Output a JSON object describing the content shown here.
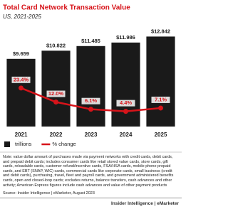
{
  "chart_data": {
    "type": "bar",
    "title": "Total Card Network Transaction Value",
    "subtitle": "US, 2021-2025",
    "categories": [
      "2021",
      "2022",
      "2023",
      "2024",
      "2025"
    ],
    "series": [
      {
        "name": "trillions",
        "color": "#1a1a1a",
        "values": [
          9.659,
          10.822,
          11.485,
          11.986,
          12.842
        ],
        "value_labels": [
          "$9.659",
          "$10.822",
          "$11.485",
          "$11.986",
          "$12.842"
        ]
      },
      {
        "name": "% change",
        "type": "line",
        "axis": "y2",
        "color": "#d7141a",
        "values": [
          23.4,
          12.0,
          6.1,
          4.4,
          7.1
        ],
        "value_labels": [
          "23.4%",
          "12.0%",
          "6.1%",
          "4.4%",
          "7.1%"
        ]
      }
    ],
    "ylim": [
      0,
      14
    ],
    "y2lim": [
      -8,
      72
    ],
    "note": "Note: value dollar amount of purchases made via payment networks with credit cards, debit cards, and prepaid debit cards; includes consumer cards like retail stored value cards, store cards, gift cards, reloadable cards, customer refund/incentive cards, FSA/HSA cards, mobile phone prepaid cards, and EBT (SNAP, WIC) cards, commercial cards like corporate cards, small business (credit and debit cards), purchasing, travel, fleet and payroll cards, and government administered benefits cards, open and closed-loop cards; excludes returns, balance transfers, cash advances and other activity; American Express figures include cash advances and value of other payment products",
    "source": "Source: Insider Intelligence | eMarketer, August 2023",
    "footer": "Insider Intelligence | eMarketer"
  }
}
